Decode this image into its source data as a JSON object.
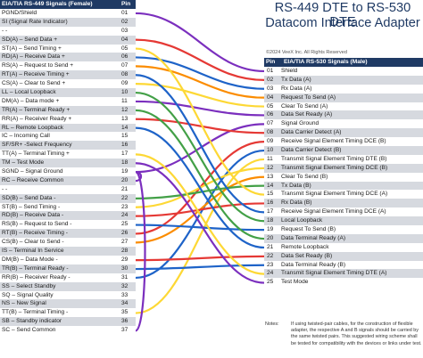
{
  "title_line1": "RS-449 DTE to RS-530 DTE",
  "title_line2": "Datacom Interface Adapter",
  "copyright": "©2024 VeeX Inc. All Rights Reserved",
  "left_header": {
    "name": "EIA/TIA RS-449 Signals (Female)",
    "pin": "Pin"
  },
  "right_header": {
    "pin": "Pin",
    "name": "EIA/TIA RS-530 Signals (Male)"
  },
  "left_rows": [
    {
      "name": "PGND/Shield",
      "pin": "01"
    },
    {
      "name": "SI (Signal Rate Indicator)",
      "pin": "02"
    },
    {
      "name": "- -",
      "pin": "03"
    },
    {
      "name": "SD(A) – Send Data +",
      "pin": "04"
    },
    {
      "name": "ST(A) – Send Timing +",
      "pin": "05"
    },
    {
      "name": "RD(A) – Receive Data +",
      "pin": "06"
    },
    {
      "name": "RS(A) – Request to Send +",
      "pin": "07"
    },
    {
      "name": "RT(A) – Receive Timing +",
      "pin": "08"
    },
    {
      "name": "CS(A) – Clear to Send +",
      "pin": "09"
    },
    {
      "name": "LL – Local Loopback",
      "pin": "10"
    },
    {
      "name": "DM(A) – Data mode +",
      "pin": "11"
    },
    {
      "name": "TR(A) – Terminal Ready +",
      "pin": "12"
    },
    {
      "name": "RR(A) – Receiver Ready +",
      "pin": "13"
    },
    {
      "name": "RL – Remote Loopback",
      "pin": "14"
    },
    {
      "name": "IC – Incoming Call",
      "pin": "15"
    },
    {
      "name": "SF/SR+ -Select Frequency",
      "pin": "16"
    },
    {
      "name": "TT(A) – Terminal Timing +",
      "pin": "17"
    },
    {
      "name": "TM – Test Mode",
      "pin": "18"
    },
    {
      "name": "SGND – Signal Ground",
      "pin": "19"
    },
    {
      "name": "RC – Receive Common",
      "pin": "20"
    },
    {
      "name": "- -",
      "pin": "21"
    },
    {
      "name": "SD(B) – Send Data -",
      "pin": "22"
    },
    {
      "name": "ST(B) – Send Timing -",
      "pin": "23"
    },
    {
      "name": "RD(B) – Receive Data -",
      "pin": "24"
    },
    {
      "name": "RS(B) – Request to Send -",
      "pin": "25"
    },
    {
      "name": "RT(B) – Receive Timing -",
      "pin": "26"
    },
    {
      "name": "CS(B) – Clear to Send -",
      "pin": "27"
    },
    {
      "name": "IS – Terminal In Service",
      "pin": "28"
    },
    {
      "name": "DM(B) – Data Mode -",
      "pin": "29"
    },
    {
      "name": "TR(B) – Terminal Ready -",
      "pin": "30"
    },
    {
      "name": "RR(B) – Receiver Ready -",
      "pin": "31"
    },
    {
      "name": "SS – Select Standby",
      "pin": "32"
    },
    {
      "name": "SQ – Signal Quality",
      "pin": "33"
    },
    {
      "name": "NS – New Signal",
      "pin": "34"
    },
    {
      "name": "TT(B) – Terminal Timing -",
      "pin": "35"
    },
    {
      "name": "SB – Standby indicator",
      "pin": "36"
    },
    {
      "name": "SC – Send Common",
      "pin": "37"
    }
  ],
  "right_rows": [
    {
      "pin": "01",
      "name": "Shield"
    },
    {
      "pin": "02",
      "name": "Tx Data (A)"
    },
    {
      "pin": "03",
      "name": "Rx Data (A)"
    },
    {
      "pin": "04",
      "name": "Request To Send (A)"
    },
    {
      "pin": "05",
      "name": "Clear To Send (A)"
    },
    {
      "pin": "06",
      "name": "Data Set Ready (A)"
    },
    {
      "pin": "07",
      "name": "Signal Ground"
    },
    {
      "pin": "08",
      "name": "Data Carrier Detect (A)"
    },
    {
      "pin": "09",
      "name": "Receive Signal Element Timing DCE (B)"
    },
    {
      "pin": "10",
      "name": "Data Carrier Detect (B)"
    },
    {
      "pin": "11",
      "name": "Transmit Signal Element Timing DTE (B)"
    },
    {
      "pin": "12",
      "name": "Transmit Signal Element Timing DCE (B)"
    },
    {
      "pin": "13",
      "name": "Clear To Send (B)"
    },
    {
      "pin": "14",
      "name": "Tx Data (B)"
    },
    {
      "pin": "15",
      "name": "Transmit Signal Element Timing DCE (A)"
    },
    {
      "pin": "16",
      "name": "Rx Data (B)"
    },
    {
      "pin": "17",
      "name": "Receive Signal Element Timing DCE (A)"
    },
    {
      "pin": "18",
      "name": "Local Loopback"
    },
    {
      "pin": "19",
      "name": "Request To Send (B)"
    },
    {
      "pin": "20",
      "name": "Data Terminal Ready (A)"
    },
    {
      "pin": "21",
      "name": "Remote Loopback"
    },
    {
      "pin": "22",
      "name": "Data Set Ready (B)"
    },
    {
      "pin": "23",
      "name": "Data Terminal Ready (B)"
    },
    {
      "pin": "24",
      "name": "Transmit Signal Element Timing DTE (A)"
    },
    {
      "pin": "25",
      "name": "Test Mode"
    }
  ],
  "notes_label": "Notes:",
  "notes_text": "If using twisted-pair cables, for the construction of flexible adapter, the respective A and B signals should be carried by the same twisted pairs. This suggested wiring scheme shall be tested for compatibility with the devices or links under test.",
  "connections": [
    {
      "from": "01",
      "to": "01",
      "color": "#7b2fbe"
    },
    {
      "from": "04",
      "to": "02",
      "color": "#e53935"
    },
    {
      "from": "06",
      "to": "03",
      "color": "#1e63c8"
    },
    {
      "from": "07",
      "to": "04",
      "color": "#fb8c00"
    },
    {
      "from": "09",
      "to": "05",
      "color": "#fdd835"
    },
    {
      "from": "11",
      "to": "06",
      "color": "#7b2fbe"
    },
    {
      "from": "19",
      "to": "07",
      "color": "#7b2fbe"
    },
    {
      "from": "13",
      "to": "08",
      "color": "#e53935"
    },
    {
      "from": "26",
      "to": "09",
      "color": "#e53935"
    },
    {
      "from": "31",
      "to": "10",
      "color": "#1e63c8"
    },
    {
      "from": "35",
      "to": "11",
      "color": "#fdd835"
    },
    {
      "from": "23",
      "to": "12",
      "color": "#fdd835"
    },
    {
      "from": "27",
      "to": "13",
      "color": "#fb8c00"
    },
    {
      "from": "22",
      "to": "14",
      "color": "#43a047"
    },
    {
      "from": "05",
      "to": "15",
      "color": "#fdd835"
    },
    {
      "from": "24",
      "to": "16",
      "color": "#e53935"
    },
    {
      "from": "08",
      "to": "17",
      "color": "#1e63c8"
    },
    {
      "from": "10",
      "to": "18",
      "color": "#43a047"
    },
    {
      "from": "25",
      "to": "19",
      "color": "#1e63c8"
    },
    {
      "from": "12",
      "to": "20",
      "color": "#43a047"
    },
    {
      "from": "14",
      "to": "21",
      "color": "#1e63c8"
    },
    {
      "from": "29",
      "to": "22",
      "color": "#e53935"
    },
    {
      "from": "30",
      "to": "23",
      "color": "#1e63c8"
    },
    {
      "from": "17",
      "to": "24",
      "color": "#fdd835"
    },
    {
      "from": "18",
      "to": "25",
      "color": "#7b2fbe"
    },
    {
      "from": "20",
      "to": "19",
      "color": "#7b2fbe",
      "loop": true
    },
    {
      "from": "37",
      "to": "19",
      "color": "#7b2fbe",
      "loop": true
    }
  ]
}
